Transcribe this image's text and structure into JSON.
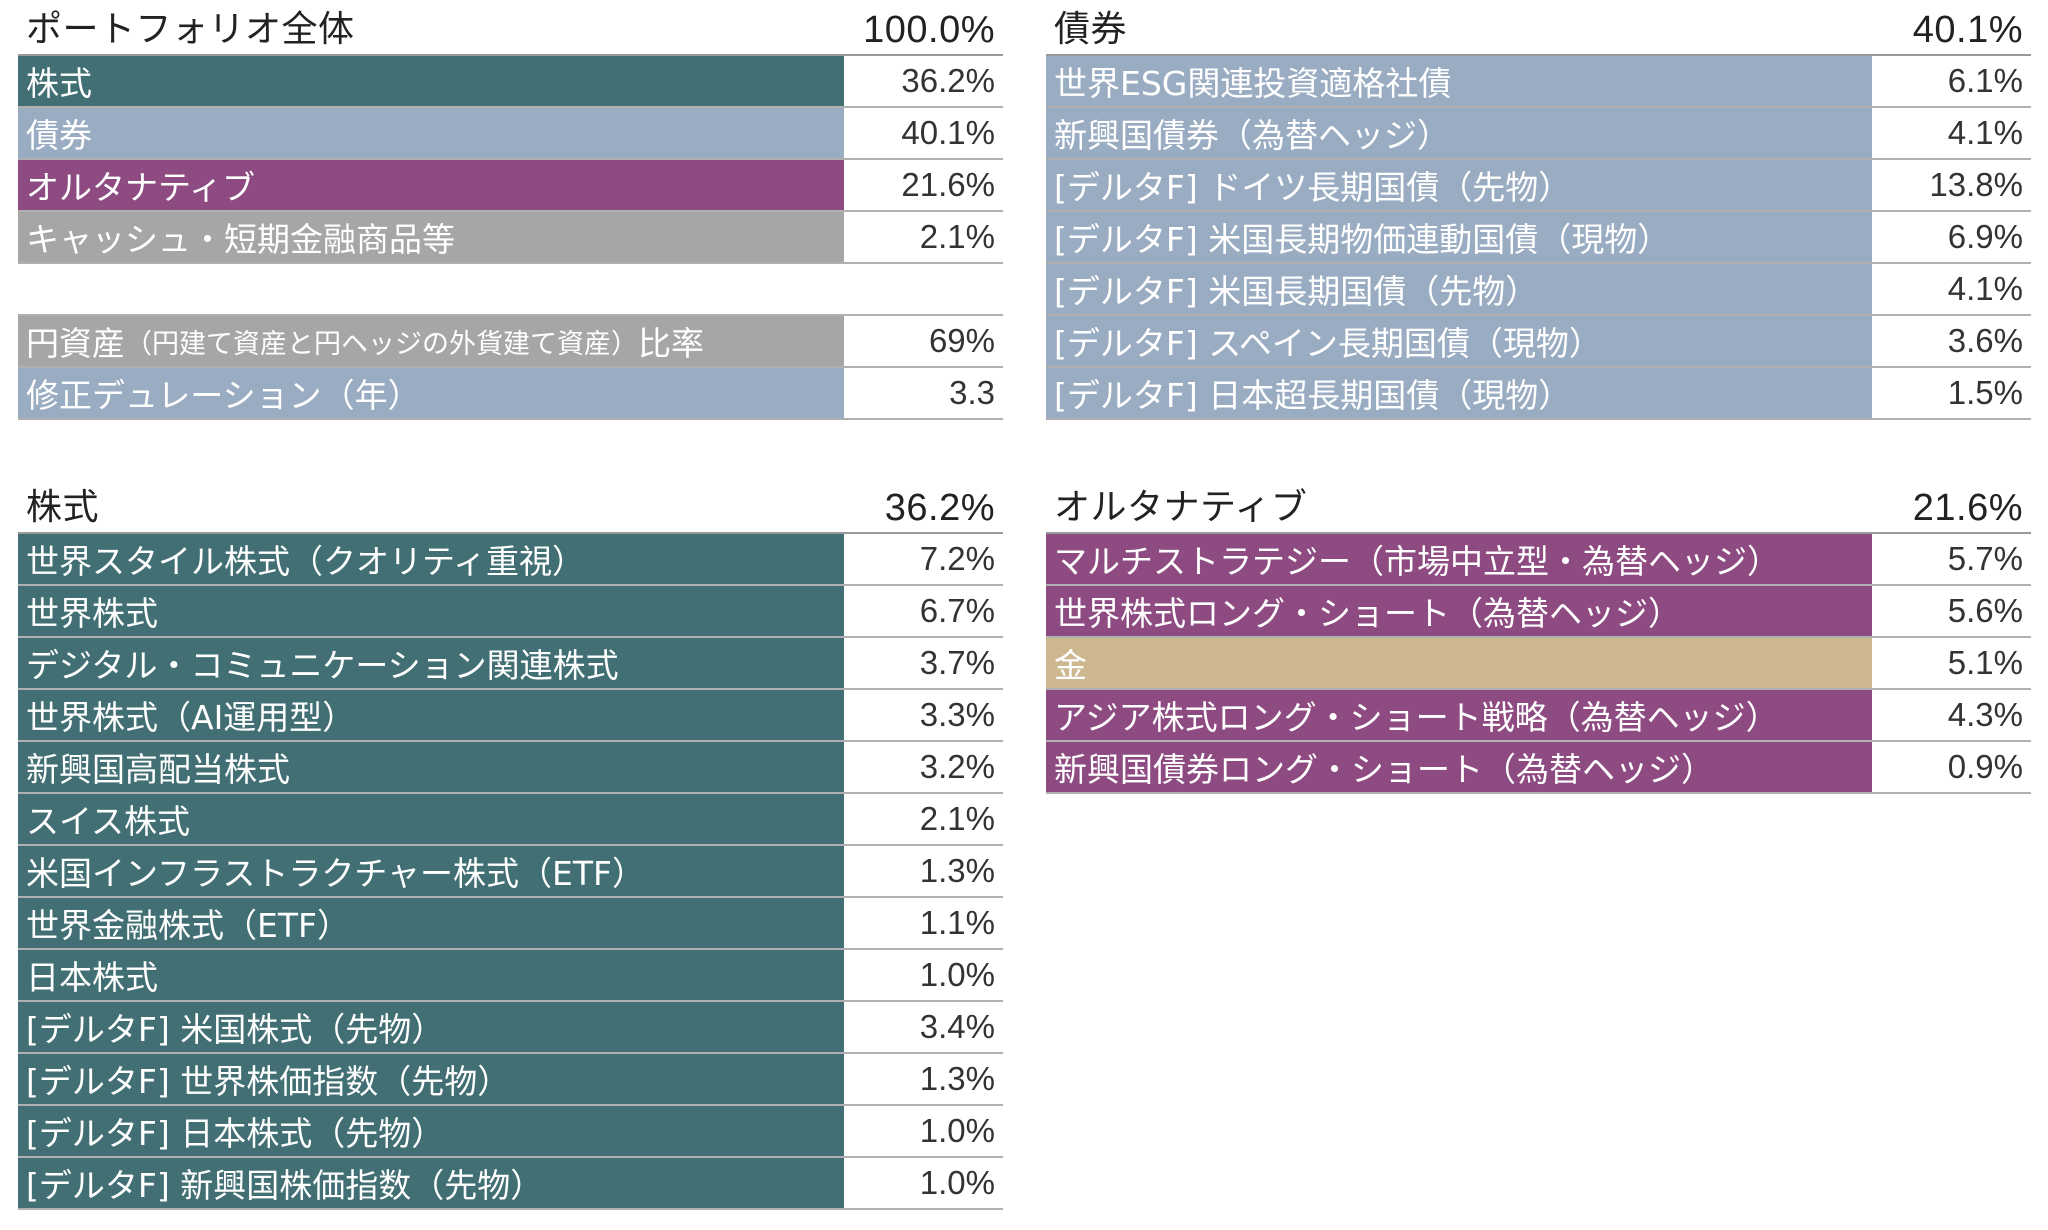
{
  "colors": {
    "equity": "#416f74",
    "bond": "#9aacc2",
    "alternative": "#8e4b82",
    "cash": "#a6a6a6",
    "gold": "#cdb78e"
  },
  "portfolio": {
    "title": "ポートフォリオ全体",
    "total": "100.0%",
    "rows": [
      {
        "label": "株式",
        "value": "36.2%",
        "type": "equity"
      },
      {
        "label": "債券",
        "value": "40.1%",
        "type": "bond"
      },
      {
        "label": "オルタナティブ",
        "value": "21.6%",
        "type": "alternative"
      },
      {
        "label": "キャッシュ・短期金融商品等",
        "value": "2.1%",
        "type": "cash"
      }
    ],
    "yen_ratio": {
      "label_pre": "円資産",
      "label_small": "（円建て資産と円ヘッジの外貨建て資産）",
      "label_post": "比率",
      "value": "69%"
    },
    "duration": {
      "label": "修正デュレーション（年）",
      "value": "3.3"
    }
  },
  "bonds": {
    "title": "債券",
    "total": "40.1%",
    "rows": [
      {
        "label": "世界ESG関連投資適格社債",
        "value": "6.1%"
      },
      {
        "label": "新興国債券（為替ヘッジ）",
        "value": "4.1%"
      },
      {
        "label": "[デルタF] ドイツ長期国債（先物）",
        "value": "13.8%"
      },
      {
        "label": "[デルタF] 米国長期物価連動国債（現物）",
        "value": "6.9%"
      },
      {
        "label": "[デルタF] 米国長期国債（先物）",
        "value": "4.1%"
      },
      {
        "label": "[デルタF] スペイン長期国債（現物）",
        "value": "3.6%"
      },
      {
        "label": "[デルタF] 日本超長期国債（現物）",
        "value": "1.5%"
      }
    ]
  },
  "equities": {
    "title": "株式",
    "total": "36.2%",
    "rows": [
      {
        "label": "世界スタイル株式（クオリティ重視）",
        "value": "7.2%"
      },
      {
        "label": "世界株式",
        "value": "6.7%"
      },
      {
        "label": "デジタル・コミュニケーション関連株式",
        "value": "3.7%"
      },
      {
        "label": "世界株式（AI運用型）",
        "value": "3.3%"
      },
      {
        "label": "新興国高配当株式",
        "value": "3.2%"
      },
      {
        "label": "スイス株式",
        "value": "2.1%"
      },
      {
        "label": "米国インフラストラクチャー株式（ETF）",
        "value": "1.3%"
      },
      {
        "label": "世界金融株式（ETF）",
        "value": "1.1%"
      },
      {
        "label": "日本株式",
        "value": "1.0%"
      },
      {
        "label": "[デルタF] 米国株式（先物）",
        "value": "3.4%"
      },
      {
        "label": "[デルタF] 世界株価指数（先物）",
        "value": "1.3%"
      },
      {
        "label": "[デルタF] 日本株式（先物）",
        "value": "1.0%"
      },
      {
        "label": "[デルタF] 新興国株価指数（先物）",
        "value": "1.0%"
      }
    ]
  },
  "alternatives": {
    "title": "オルタナティブ",
    "total": "21.6%",
    "rows": [
      {
        "label": "マルチストラテジー（市場中立型・為替ヘッジ）",
        "value": "5.7%",
        "type": "alternative"
      },
      {
        "label": "世界株式ロング・ショート（為替ヘッジ）",
        "value": "5.6%",
        "type": "alternative"
      },
      {
        "label": "金",
        "value": "5.1%",
        "type": "gold"
      },
      {
        "label": "アジア株式ロング・ショート戦略（為替ヘッジ）",
        "value": "4.3%",
        "type": "alternative"
      },
      {
        "label": "新興国債券ロング・ショート（為替ヘッジ）",
        "value": "0.9%",
        "type": "alternative"
      }
    ]
  }
}
